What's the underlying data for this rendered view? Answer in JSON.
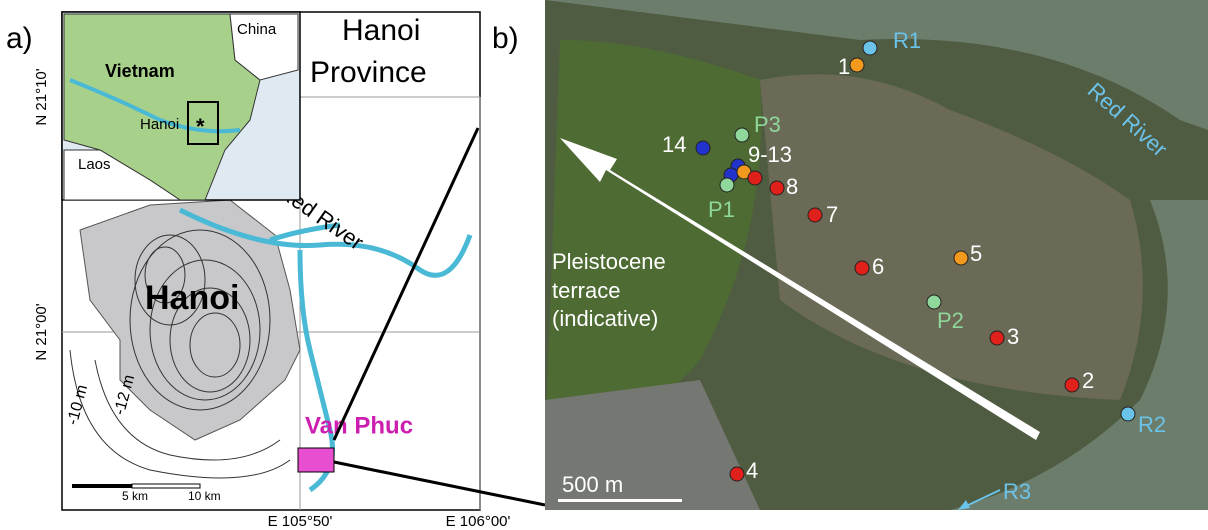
{
  "panel_a": {
    "label": "a)",
    "inset": {
      "labels": [
        "China",
        "Vietnam",
        "Hanoi",
        "Laos"
      ],
      "marker": "*"
    },
    "title": [
      "Hanoi",
      "Province"
    ],
    "latitudes": [
      "N 21°10'",
      "N 21°00'"
    ],
    "longitudes": [
      "E 105°50'",
      "E 106°00'"
    ],
    "river": "Red River",
    "city": "Hanoi",
    "contours": [
      "-10 m",
      "-12 m"
    ],
    "site": "Van Phuc",
    "scale": [
      "5 km",
      "10 km"
    ]
  },
  "panel_b": {
    "label": "b)",
    "river": "Red River",
    "terrace": [
      "Pleistocene",
      "terrace",
      "(indicative)"
    ],
    "scale": "500 m",
    "flow": "R3",
    "sites": [
      "R1",
      "1",
      "P3",
      "14",
      "9-13",
      "8",
      "P1",
      "7",
      "6",
      "5",
      "P2",
      "3",
      "2",
      "R2",
      "4"
    ]
  }
}
